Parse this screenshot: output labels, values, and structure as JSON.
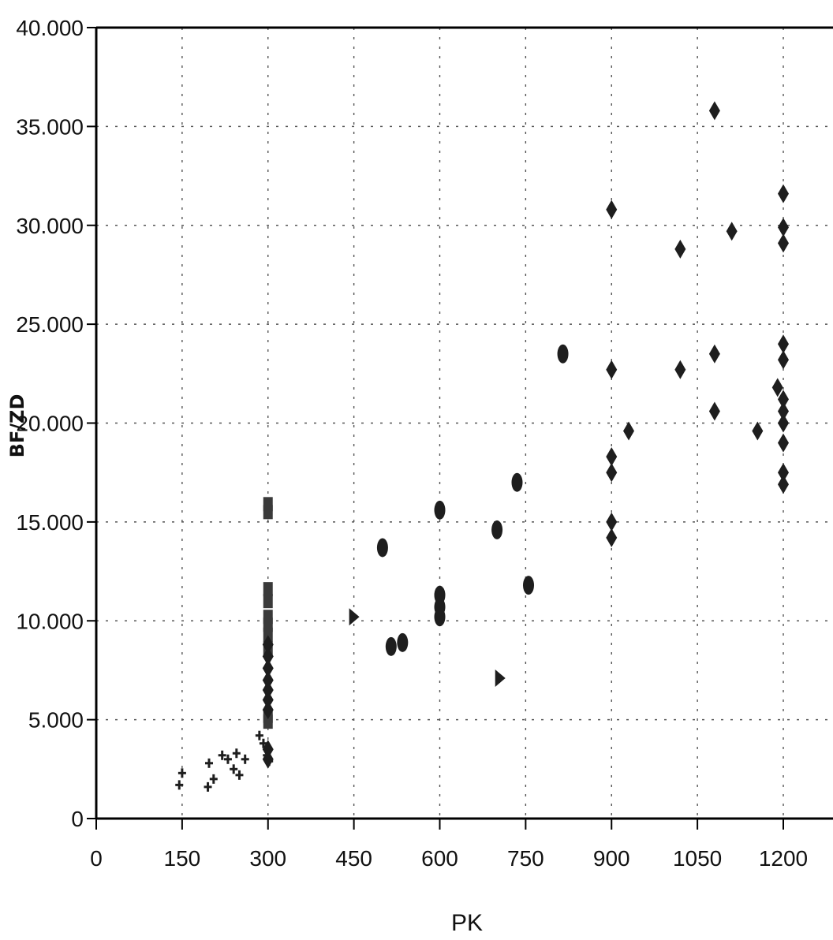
{
  "chart_data": {
    "type": "scatter",
    "title": "",
    "xlabel": "PK",
    "ylabel": "BF/ZD",
    "xlim": [
      0,
      1260
    ],
    "ylim": [
      0,
      40000
    ],
    "x_ticks": [
      0,
      150,
      300,
      450,
      600,
      750,
      900,
      1050,
      1200
    ],
    "x_tick_labels": [
      "0",
      "150",
      "300",
      "450",
      "600",
      "750",
      "900",
      "1050",
      "1200"
    ],
    "y_ticks": [
      0,
      5000,
      10000,
      15000,
      20000,
      25000,
      30000,
      35000,
      40000
    ],
    "y_tick_labels": [
      "0",
      "5.000",
      "10.000",
      "15.000",
      "20.000",
      "25.000",
      "30.000",
      "35.000",
      "40.000"
    ],
    "grid": true,
    "grid_style": "dotted",
    "colors": {
      "marker": "#1e1e1e",
      "grid": "#555555",
      "axis": "#000000"
    },
    "series": [
      {
        "marker": "cross",
        "points": [
          [
            145,
            1700
          ],
          [
            150,
            2300
          ],
          [
            195,
            1600
          ],
          [
            197,
            2800
          ],
          [
            205,
            2000
          ],
          [
            220,
            3200
          ],
          [
            230,
            3000
          ],
          [
            240,
            2500
          ],
          [
            245,
            3300
          ],
          [
            250,
            2200
          ],
          [
            260,
            3000
          ],
          [
            285,
            4200
          ],
          [
            292,
            3800
          ],
          [
            298,
            3200
          ],
          [
            302,
            2900
          ]
        ]
      },
      {
        "marker": "square",
        "points": [
          [
            300,
            15900
          ],
          [
            300,
            15500
          ],
          [
            300,
            11600
          ],
          [
            300,
            11000
          ],
          [
            300,
            10200
          ],
          [
            300,
            9800
          ],
          [
            300,
            9300
          ],
          [
            300,
            8600
          ],
          [
            300,
            5200
          ],
          [
            300,
            4900
          ]
        ]
      },
      {
        "marker": "diamond",
        "points": [
          [
            300,
            8800
          ],
          [
            300,
            8200
          ],
          [
            300,
            7600
          ],
          [
            300,
            7000
          ],
          [
            300,
            6500
          ],
          [
            300,
            6000
          ],
          [
            300,
            5500
          ],
          [
            300,
            3500
          ],
          [
            300,
            3000
          ],
          [
            900,
            30800
          ],
          [
            900,
            22700
          ],
          [
            900,
            18300
          ],
          [
            900,
            17500
          ],
          [
            900,
            15000
          ],
          [
            900,
            14200
          ],
          [
            930,
            19600
          ],
          [
            1020,
            28800
          ],
          [
            1020,
            22700
          ],
          [
            1080,
            35800
          ],
          [
            1080,
            23500
          ],
          [
            1080,
            20600
          ],
          [
            1110,
            29700
          ],
          [
            1155,
            19600
          ],
          [
            1190,
            21800
          ],
          [
            1200,
            31600
          ],
          [
            1200,
            29900
          ],
          [
            1200,
            29100
          ],
          [
            1200,
            24000
          ],
          [
            1200,
            23200
          ],
          [
            1200,
            21200
          ],
          [
            1200,
            20600
          ],
          [
            1200,
            20000
          ],
          [
            1200,
            19000
          ],
          [
            1200,
            17500
          ],
          [
            1200,
            16900
          ]
        ]
      },
      {
        "marker": "ellipse",
        "points": [
          [
            500,
            13700
          ],
          [
            515,
            8700
          ],
          [
            535,
            8900
          ],
          [
            600,
            15600
          ],
          [
            600,
            11300
          ],
          [
            600,
            10700
          ],
          [
            600,
            10200
          ],
          [
            700,
            14600
          ],
          [
            735,
            17000
          ],
          [
            755,
            11800
          ],
          [
            815,
            23500
          ]
        ]
      },
      {
        "marker": "triangle-right",
        "points": [
          [
            450,
            10200
          ],
          [
            705,
            7100
          ]
        ]
      }
    ]
  }
}
